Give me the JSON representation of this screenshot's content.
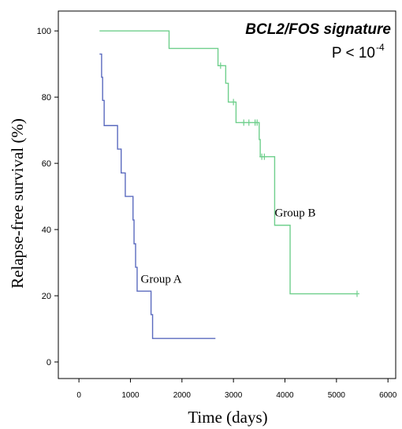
{
  "chart_data": {
    "type": "line",
    "title": "BCL2/FOS signature",
    "p_value": {
      "prefix": "P < 10",
      "exponent": "-4"
    },
    "xlabel": "Time (days)",
    "ylabel": "Relapse-free survival (%)",
    "xlim": [
      -400,
      6150
    ],
    "ylim": [
      -5,
      106
    ],
    "xticks": [
      0,
      1000,
      2000,
      3000,
      4000,
      5000,
      6000
    ],
    "yticks": [
      0,
      20,
      40,
      60,
      80,
      100
    ],
    "grid": false,
    "series": [
      {
        "name": "Group A",
        "color": "#5b6bbf",
        "label_at": [
          1200,
          24
        ],
        "steps": [
          [
            400,
            93
          ],
          [
            440,
            86
          ],
          [
            460,
            79
          ],
          [
            490,
            71.4
          ],
          [
            750,
            64.3
          ],
          [
            820,
            57.1
          ],
          [
            900,
            50
          ],
          [
            1050,
            42.9
          ],
          [
            1070,
            35.7
          ],
          [
            1100,
            28.6
          ],
          [
            1130,
            21.4
          ],
          [
            1400,
            14.3
          ],
          [
            1430,
            7.1
          ],
          [
            2650,
            7.1
          ]
        ],
        "censored": []
      },
      {
        "name": "Group B",
        "color": "#6fcf8c",
        "label_at": [
          3800,
          44
        ],
        "steps": [
          [
            400,
            100
          ],
          [
            1750,
            94.7
          ],
          [
            2700,
            89.5
          ],
          [
            2850,
            84.2
          ],
          [
            2900,
            78.5
          ],
          [
            3050,
            72.3
          ],
          [
            3500,
            67.2
          ],
          [
            3520,
            62
          ],
          [
            3800,
            62
          ],
          [
            3800,
            41.3
          ],
          [
            4100,
            41.3
          ],
          [
            4100,
            20.6
          ],
          [
            5400,
            20.6
          ]
        ],
        "censored": [
          [
            2750,
            89.5
          ],
          [
            3000,
            78.5
          ],
          [
            3200,
            72.3
          ],
          [
            3300,
            72.3
          ],
          [
            3420,
            72.3
          ],
          [
            3460,
            72.3
          ],
          [
            3550,
            62
          ],
          [
            3600,
            62
          ],
          [
            5400,
            20.6
          ]
        ]
      }
    ]
  }
}
